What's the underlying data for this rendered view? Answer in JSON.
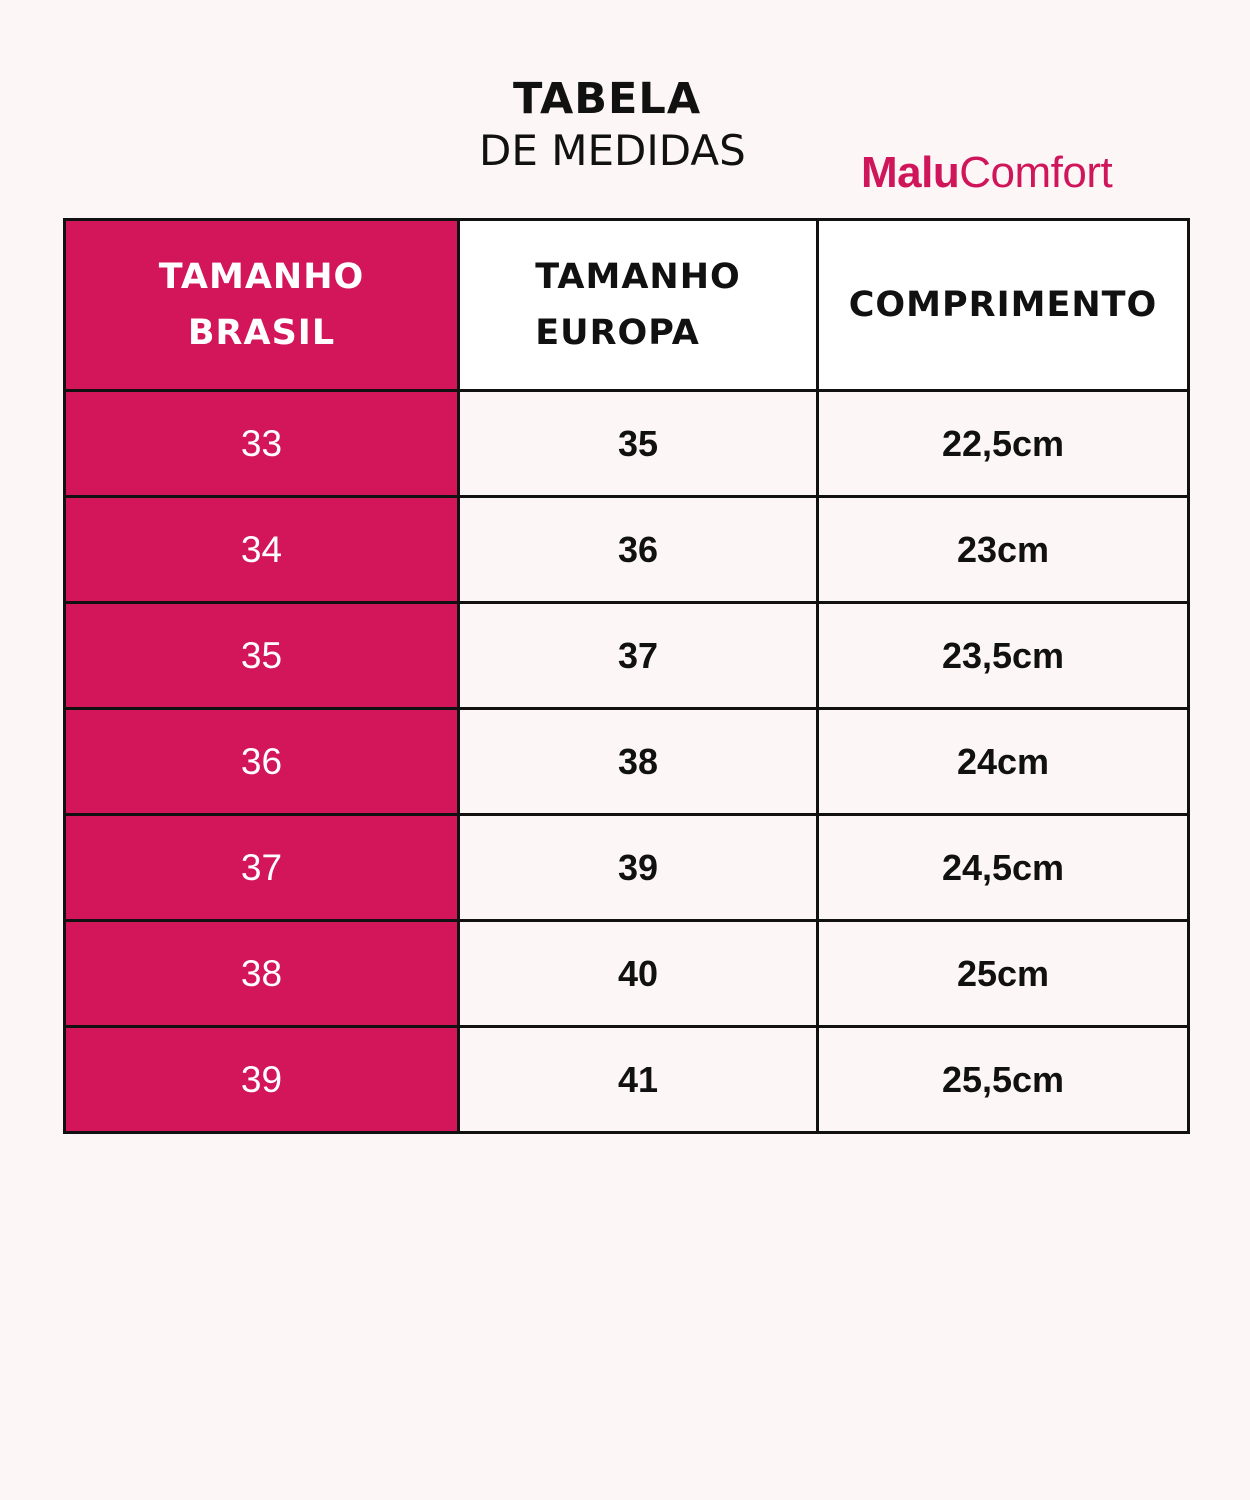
{
  "title": {
    "main": "TABELA",
    "sub": "DE MEDIDAS"
  },
  "brand": {
    "bold": "Malu",
    "light": "Comfort",
    "color": "#d0165a"
  },
  "colors": {
    "accent": "#d3155a",
    "background": "#fdf6f6",
    "border": "#111111"
  },
  "table": {
    "headers": {
      "brasil": [
        "TAMANHO",
        "BRASIL"
      ],
      "europa": [
        "TAMANHO",
        "EUROPA"
      ],
      "comprimento": "COMPRIMENTO"
    },
    "rows": [
      {
        "brasil": "33",
        "europa": "35",
        "comprimento": "22,5cm"
      },
      {
        "brasil": "34",
        "europa": "36",
        "comprimento": "23cm"
      },
      {
        "brasil": "35",
        "europa": "37",
        "comprimento": "23,5cm"
      },
      {
        "brasil": "36",
        "europa": "38",
        "comprimento": "24cm"
      },
      {
        "brasil": "37",
        "europa": "39",
        "comprimento": "24,5cm"
      },
      {
        "brasil": "38",
        "europa": "40",
        "comprimento": "25cm"
      },
      {
        "brasil": "39",
        "europa": "41",
        "comprimento": "25,5cm"
      }
    ]
  }
}
